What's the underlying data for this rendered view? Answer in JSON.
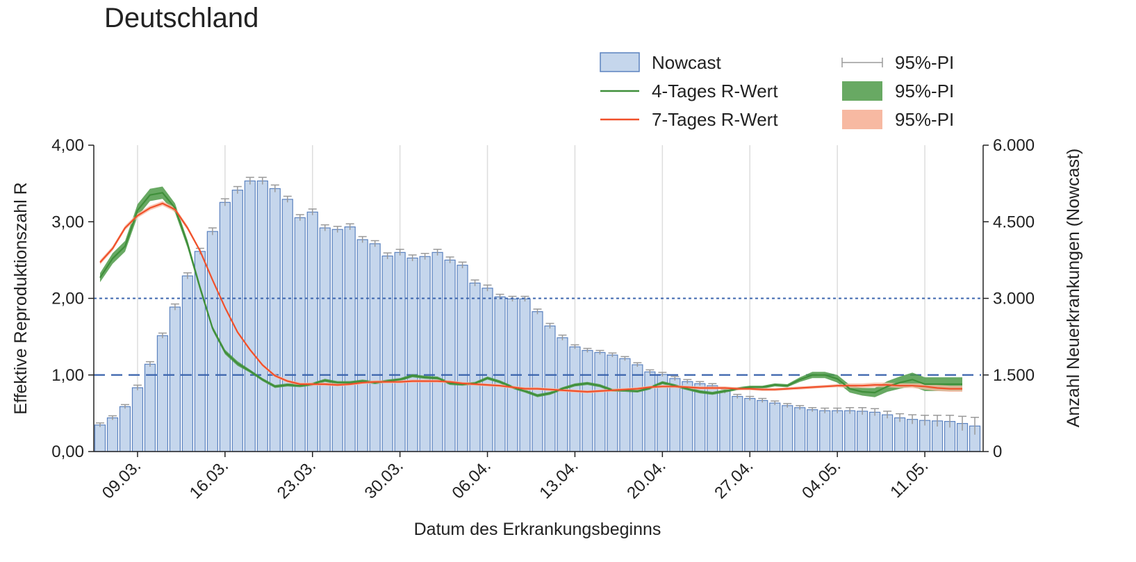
{
  "title": "Deutschland",
  "colors": {
    "bar_fill": "#c5d6ec",
    "bar_stroke": "#5b82bf",
    "errorbar": "#9a9a9a",
    "r4_line": "#3f8f3a",
    "r4_band": "#4e9a48",
    "r7_line": "#f0502a",
    "r7_band": "#f7b9a2",
    "ref_line": "#3b64ad",
    "grid": "#dddddd"
  },
  "legend": [
    {
      "label": "Nowcast",
      "icon": "bar-swatch"
    },
    {
      "label": "95%-PI",
      "icon": "errorbar-swatch"
    },
    {
      "label": "4-Tages R-Wert",
      "icon": "green-line"
    },
    {
      "label": "95%-PI",
      "icon": "green-band"
    },
    {
      "label": "7-Tages R-Wert",
      "icon": "orange-line"
    },
    {
      "label": "95%-PI",
      "icon": "orange-band"
    }
  ],
  "chart_data": {
    "type": "bar",
    "title": "Deutschland",
    "xlabel": "Datum des Erkrankungsbeginns",
    "ylabel_left": "Effektive Reproduktionszahl R",
    "ylabel_right": "Anzahl Neuerkrankungen (Nowcast)",
    "x_tick_labels": [
      "09.03.",
      "16.03.",
      "23.03.",
      "30.03.",
      "06.04.",
      "13.04.",
      "20.04.",
      "27.04.",
      "04.05.",
      "11.05."
    ],
    "y_left_ticks": [
      "0,00",
      "1,00",
      "2,00",
      "3,00",
      "4,00"
    ],
    "y_right_ticks": [
      "0",
      "1.500",
      "3.000",
      "4.500",
      "6.000"
    ],
    "ylim_left": [
      0,
      4
    ],
    "ylim_right": [
      0,
      6000
    ],
    "reference_lines_left": [
      1,
      2
    ],
    "grid": "vertical",
    "legend_position": "top-right",
    "dates": [
      "06.03.",
      "07.03.",
      "08.03.",
      "09.03.",
      "10.03.",
      "11.03.",
      "12.03.",
      "13.03.",
      "14.03.",
      "15.03.",
      "16.03.",
      "17.03.",
      "18.03.",
      "19.03.",
      "20.03.",
      "21.03.",
      "22.03.",
      "23.03.",
      "24.03.",
      "25.03.",
      "26.03.",
      "27.03.",
      "28.03.",
      "29.03.",
      "30.03.",
      "31.03.",
      "01.04.",
      "02.04.",
      "03.04.",
      "04.04.",
      "05.04.",
      "06.04.",
      "07.04.",
      "08.04.",
      "09.04.",
      "10.04.",
      "11.04.",
      "12.04.",
      "13.04.",
      "14.04.",
      "15.04.",
      "16.04.",
      "17.04.",
      "18.04.",
      "19.04.",
      "20.04.",
      "21.04.",
      "22.04.",
      "23.04.",
      "24.04.",
      "25.04.",
      "26.04.",
      "27.04.",
      "28.04.",
      "29.04.",
      "30.04.",
      "01.05.",
      "02.05.",
      "03.05.",
      "04.05.",
      "05.05.",
      "06.05.",
      "07.05.",
      "08.05.",
      "09.05.",
      "10.05.",
      "11.05.",
      "12.05.",
      "13.05.",
      "14.05.",
      "15.05."
    ],
    "series": [
      {
        "name": "Nowcast",
        "axis": "right",
        "values": [
          520,
          660,
          880,
          1250,
          1710,
          2270,
          2830,
          3440,
          3920,
          4310,
          4880,
          5120,
          5300,
          5300,
          5150,
          4940,
          4580,
          4690,
          4380,
          4350,
          4400,
          4150,
          4070,
          3830,
          3900,
          3790,
          3820,
          3900,
          3750,
          3650,
          3300,
          3200,
          3030,
          2990,
          2990,
          2740,
          2460,
          2230,
          2050,
          1980,
          1940,
          1890,
          1820,
          1700,
          1560,
          1510,
          1430,
          1370,
          1330,
          1290,
          1180,
          1080,
          1040,
          1000,
          950,
          900,
          860,
          820,
          800,
          800,
          800,
          790,
          770,
          720,
          660,
          630,
          610,
          600,
          590,
          550,
          500
        ],
        "pi_width": [
          40,
          40,
          40,
          50,
          50,
          50,
          60,
          60,
          60,
          70,
          70,
          70,
          70,
          70,
          70,
          60,
          60,
          60,
          60,
          60,
          60,
          60,
          60,
          60,
          60,
          60,
          60,
          60,
          60,
          60,
          60,
          60,
          50,
          50,
          50,
          50,
          50,
          50,
          40,
          40,
          40,
          40,
          40,
          40,
          40,
          40,
          40,
          40,
          40,
          40,
          40,
          40,
          40,
          40,
          40,
          40,
          40,
          40,
          50,
          50,
          60,
          70,
          70,
          70,
          80,
          90,
          100,
          110,
          120,
          140,
          170
        ]
      },
      {
        "name": "4-Tages R-Wert",
        "axis": "left",
        "x": [
          "06.03.",
          "07.03.",
          "08.03.",
          "09.03.",
          "10.03.",
          "11.03.",
          "12.03.",
          "13.03.",
          "14.03.",
          "15.03.",
          "16.03.",
          "17.03.",
          "18.03.",
          "19.03.",
          "20.03.",
          "21.03.",
          "22.03.",
          "23.03.",
          "24.03.",
          "25.03.",
          "26.03.",
          "27.03.",
          "28.03.",
          "29.03.",
          "30.03.",
          "31.03.",
          "01.04.",
          "02.04.",
          "03.04.",
          "04.04.",
          "05.04.",
          "06.04.",
          "07.04.",
          "08.04.",
          "09.04.",
          "10.04.",
          "11.04.",
          "12.04.",
          "13.04.",
          "14.04.",
          "15.04.",
          "16.04.",
          "17.04.",
          "18.04.",
          "19.04.",
          "20.04.",
          "21.04.",
          "22.04.",
          "23.04.",
          "24.04.",
          "25.04.",
          "26.04.",
          "27.04.",
          "28.04.",
          "29.04.",
          "30.04.",
          "01.05.",
          "02.05.",
          "03.05.",
          "04.05.",
          "05.05.",
          "06.05.",
          "07.05.",
          "08.05.",
          "09.05.",
          "10.05.",
          "11.05.",
          "12.05.",
          "13.05.",
          "14.05."
        ],
        "values": [
          2.27,
          2.52,
          2.68,
          3.15,
          3.35,
          3.38,
          3.18,
          2.71,
          2.14,
          1.61,
          1.3,
          1.15,
          1.05,
          0.94,
          0.85,
          0.87,
          0.86,
          0.88,
          0.93,
          0.9,
          0.9,
          0.92,
          0.9,
          0.92,
          0.94,
          0.99,
          0.97,
          0.96,
          0.89,
          0.88,
          0.89,
          0.96,
          0.91,
          0.84,
          0.79,
          0.73,
          0.76,
          0.82,
          0.87,
          0.89,
          0.86,
          0.8,
          0.8,
          0.79,
          0.83,
          0.9,
          0.86,
          0.82,
          0.78,
          0.76,
          0.79,
          0.82,
          0.84,
          0.84,
          0.87,
          0.86,
          0.94,
          1.0,
          1.0,
          0.95,
          0.82,
          0.78,
          0.77,
          0.85,
          0.9,
          0.94,
          0.88,
          0.88,
          0.88,
          0.88
        ],
        "band_width": [
          0.06,
          0.07,
          0.07,
          0.08,
          0.08,
          0.08,
          0.06,
          0.05,
          0.04,
          0.03,
          0.03,
          0.03,
          0.02,
          0.02,
          0.02,
          0.02,
          0.02,
          0.02,
          0.02,
          0.02,
          0.02,
          0.02,
          0.02,
          0.02,
          0.02,
          0.02,
          0.02,
          0.02,
          0.02,
          0.02,
          0.02,
          0.02,
          0.02,
          0.02,
          0.02,
          0.02,
          0.02,
          0.02,
          0.02,
          0.02,
          0.02,
          0.02,
          0.02,
          0.02,
          0.02,
          0.02,
          0.02,
          0.02,
          0.02,
          0.02,
          0.02,
          0.02,
          0.02,
          0.02,
          0.02,
          0.02,
          0.03,
          0.04,
          0.04,
          0.05,
          0.05,
          0.05,
          0.06,
          0.07,
          0.08,
          0.09,
          0.09,
          0.09,
          0.09,
          0.09
        ]
      },
      {
        "name": "7-Tages R-Wert",
        "axis": "left",
        "x": [
          "06.03.",
          "07.03.",
          "08.03.",
          "09.03.",
          "10.03.",
          "11.03.",
          "12.03.",
          "13.03.",
          "14.03.",
          "15.03.",
          "16.03.",
          "17.03.",
          "18.03.",
          "19.03.",
          "20.03.",
          "21.03.",
          "22.03.",
          "23.03.",
          "24.03.",
          "25.03.",
          "26.03.",
          "27.03.",
          "28.03.",
          "29.03.",
          "30.03.",
          "31.03.",
          "01.04.",
          "02.04.",
          "03.04.",
          "04.04.",
          "05.04.",
          "06.04.",
          "07.04.",
          "08.04.",
          "09.04.",
          "10.04.",
          "11.04.",
          "12.04.",
          "13.04.",
          "14.04.",
          "15.04.",
          "16.04.",
          "17.04.",
          "18.04.",
          "19.04.",
          "20.04.",
          "21.04.",
          "22.04.",
          "23.04.",
          "24.04.",
          "25.04.",
          "26.04.",
          "27.04.",
          "28.04.",
          "29.04.",
          "30.04.",
          "01.05.",
          "02.05.",
          "03.05.",
          "04.05.",
          "05.05.",
          "06.05.",
          "07.05.",
          "08.05.",
          "09.05.",
          "10.05.",
          "11.05.",
          "12.05.",
          "13.05.",
          "14.05."
        ],
        "values": [
          2.47,
          2.65,
          2.92,
          3.08,
          3.18,
          3.24,
          3.16,
          2.92,
          2.62,
          2.24,
          1.88,
          1.56,
          1.33,
          1.13,
          0.99,
          0.92,
          0.88,
          0.88,
          0.88,
          0.87,
          0.88,
          0.9,
          0.91,
          0.91,
          0.91,
          0.92,
          0.92,
          0.92,
          0.91,
          0.89,
          0.88,
          0.87,
          0.86,
          0.84,
          0.82,
          0.82,
          0.81,
          0.8,
          0.79,
          0.78,
          0.79,
          0.8,
          0.81,
          0.82,
          0.84,
          0.85,
          0.85,
          0.84,
          0.83,
          0.83,
          0.83,
          0.82,
          0.82,
          0.81,
          0.81,
          0.82,
          0.83,
          0.84,
          0.85,
          0.86,
          0.86,
          0.86,
          0.87,
          0.87,
          0.86,
          0.86,
          0.85,
          0.83,
          0.82,
          0.82
        ],
        "band_width": [
          0.03,
          0.03,
          0.03,
          0.03,
          0.03,
          0.03,
          0.03,
          0.03,
          0.02,
          0.02,
          0.02,
          0.02,
          0.02,
          0.02,
          0.02,
          0.02,
          0.02,
          0.02,
          0.02,
          0.02,
          0.02,
          0.02,
          0.02,
          0.02,
          0.02,
          0.02,
          0.02,
          0.02,
          0.02,
          0.02,
          0.02,
          0.02,
          0.02,
          0.02,
          0.02,
          0.02,
          0.02,
          0.02,
          0.02,
          0.02,
          0.02,
          0.02,
          0.02,
          0.02,
          0.02,
          0.02,
          0.02,
          0.02,
          0.02,
          0.02,
          0.02,
          0.02,
          0.02,
          0.02,
          0.02,
          0.02,
          0.02,
          0.02,
          0.02,
          0.02,
          0.03,
          0.03,
          0.03,
          0.03,
          0.03,
          0.03,
          0.04,
          0.04,
          0.04,
          0.04
        ]
      }
    ]
  }
}
